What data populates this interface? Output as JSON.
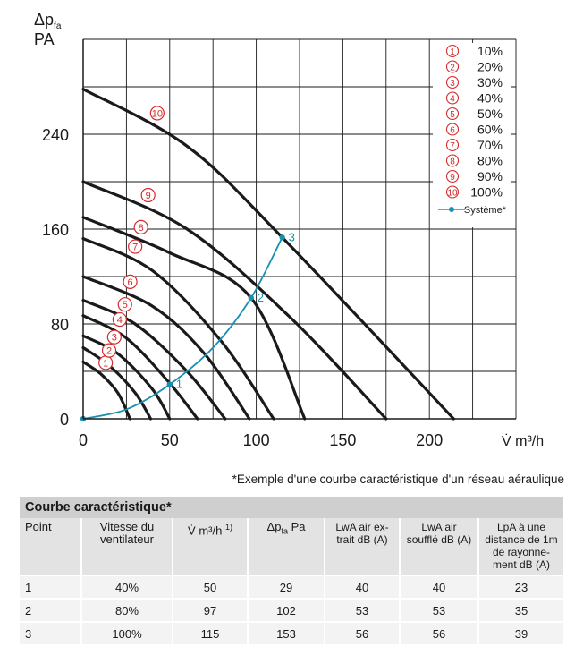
{
  "chart_data": {
    "type": "line",
    "y_axis_label_symbol": "Δp",
    "y_axis_label_sub": "fa",
    "y_axis_label_unit": "PA",
    "x_axis_label": "V̇ m³/h",
    "x_ticks": [
      "0",
      "50",
      "100",
      "150",
      "200"
    ],
    "y_ticks": [
      "0",
      "80",
      "160",
      "240"
    ],
    "xlim": [
      0,
      250
    ],
    "ylim": [
      0,
      320
    ],
    "grid": true,
    "legend_position": "top-right",
    "series": [
      {
        "name": "10%",
        "marker": "①",
        "points": [
          [
            0,
            48
          ],
          [
            10,
            38
          ],
          [
            20,
            22
          ],
          [
            27,
            0
          ]
        ]
      },
      {
        "name": "20%",
        "marker": "②",
        "points": [
          [
            0,
            60
          ],
          [
            15,
            45
          ],
          [
            30,
            22
          ],
          [
            39,
            0
          ]
        ]
      },
      {
        "name": "30%",
        "marker": "③",
        "points": [
          [
            0,
            70
          ],
          [
            20,
            55
          ],
          [
            40,
            25
          ],
          [
            50,
            0
          ]
        ]
      },
      {
        "name": "40%",
        "marker": "④",
        "points": [
          [
            0,
            87
          ],
          [
            25,
            68
          ],
          [
            50,
            30
          ],
          [
            66,
            0
          ]
        ]
      },
      {
        "name": "50%",
        "marker": "⑤",
        "points": [
          [
            0,
            100
          ],
          [
            30,
            80
          ],
          [
            60,
            40
          ],
          [
            82,
            0
          ]
        ]
      },
      {
        "name": "60%",
        "marker": "⑥",
        "points": [
          [
            0,
            120
          ],
          [
            40,
            95
          ],
          [
            70,
            55
          ],
          [
            96,
            0
          ]
        ]
      },
      {
        "name": "70%",
        "marker": "⑦",
        "points": [
          [
            0,
            152
          ],
          [
            40,
            125
          ],
          [
            80,
            65
          ],
          [
            110,
            0
          ]
        ]
      },
      {
        "name": "80%",
        "marker": "⑧",
        "points": [
          [
            0,
            170
          ],
          [
            50,
            140
          ],
          [
            97,
            102
          ],
          [
            128,
            0
          ]
        ]
      },
      {
        "name": "90%",
        "marker": "⑨",
        "points": [
          [
            0,
            200
          ],
          [
            60,
            160
          ],
          [
            120,
            85
          ],
          [
            175,
            0
          ]
        ]
      },
      {
        "name": "100%",
        "marker": "⑩",
        "points": [
          [
            0,
            278
          ],
          [
            60,
            230
          ],
          [
            115,
            153
          ],
          [
            214,
            0
          ]
        ]
      }
    ],
    "system_curve": {
      "name": "Système*",
      "points": [
        [
          0,
          0
        ],
        [
          25,
          8
        ],
        [
          50,
          29
        ],
        [
          75,
          60
        ],
        [
          97,
          102
        ],
        [
          115,
          153
        ]
      ],
      "labeled_points": [
        {
          "label": "1",
          "x": 50,
          "y": 29
        },
        {
          "label": "2",
          "x": 97,
          "y": 102
        },
        {
          "label": "3",
          "x": 115,
          "y": 153
        }
      ]
    },
    "colors": {
      "curve": "#1a1a1a",
      "marker": "#d62a2a",
      "system": "#1a8fb0",
      "grid": "#1a1a1a"
    }
  },
  "note": "*Exemple d'une courbe caractéristique d'un réseau aéraulique",
  "table": {
    "title": "Courbe caractéristique*",
    "headers": {
      "point": "Point",
      "vitesse": "Vitesse du ventilateur",
      "volume": "V̇ m³/h",
      "volume_sup": "1)",
      "dp": "Δp",
      "dp_sub": "fa",
      "dp_unit": "Pa",
      "lwa_extrait": "LwA air ex-trait dB (A)",
      "lwa_souffle": "LwA air soufflé dB (A)",
      "lpa": "LpA à une distance de 1m de rayonne-ment dB (A)"
    },
    "rows": [
      {
        "point": "1",
        "vitesse": "40%",
        "volume": "50",
        "dp": "29",
        "lwa_extrait": "40",
        "lwa_souffle": "40",
        "lpa": "23"
      },
      {
        "point": "2",
        "vitesse": "80%",
        "volume": "97",
        "dp": "102",
        "lwa_extrait": "53",
        "lwa_souffle": "53",
        "lpa": "35"
      },
      {
        "point": "3",
        "vitesse": "100%",
        "volume": "115",
        "dp": "153",
        "lwa_extrait": "56",
        "lwa_souffle": "56",
        "lpa": "39"
      }
    ]
  }
}
